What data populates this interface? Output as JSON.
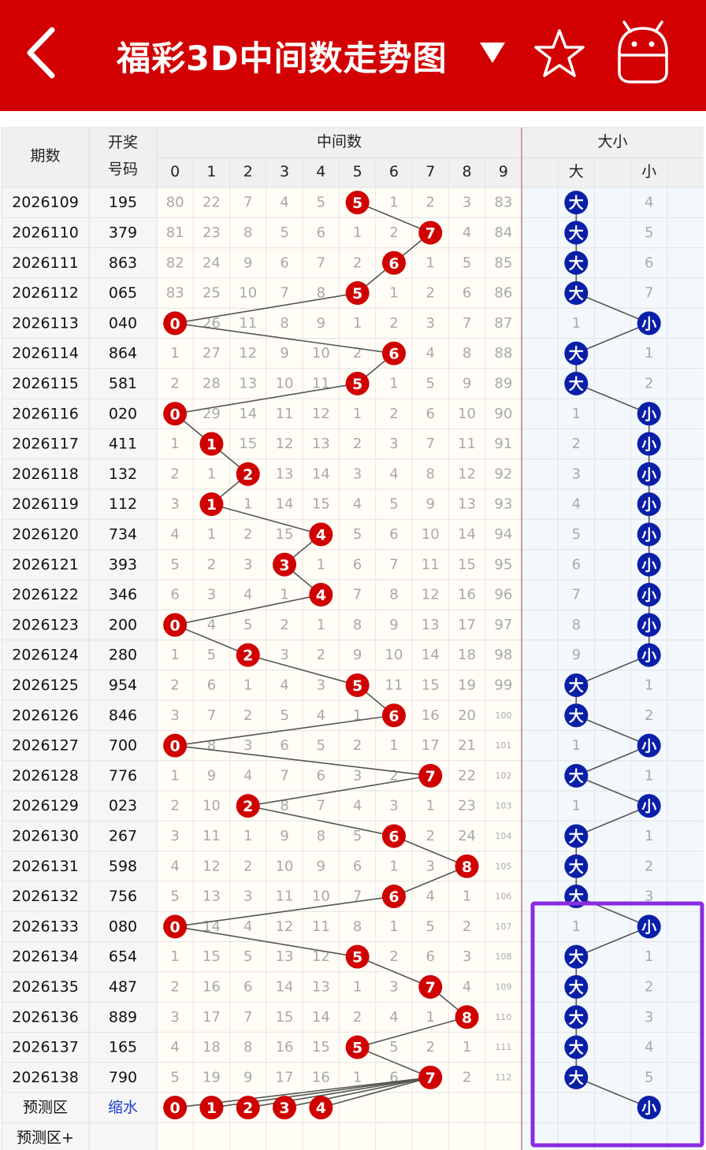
{
  "header": {
    "title": "福彩3D中间数走势图",
    "dropdown_icon": "triangle-down-icon",
    "back_icon": "chevron-left-icon",
    "star_icon": "star-icon",
    "robot_icon": "android-icon",
    "color": "#d20000"
  },
  "table": {
    "col_issue": "期数",
    "col_draw_line1": "开奖",
    "col_draw_line2": "号码",
    "group_mid": "中间数",
    "group_size": "大小",
    "digits": [
      "0",
      "1",
      "2",
      "3",
      "4",
      "5",
      "6",
      "7",
      "8",
      "9"
    ],
    "size_labels": [
      "大",
      "小"
    ],
    "rows": [
      {
        "issue": "2026109",
        "draw": "195",
        "mid": 5,
        "miss": [
          80,
          22,
          7,
          4,
          5,
          null,
          1,
          2,
          3,
          83
        ],
        "size": "大",
        "size_miss": [
          null,
          4
        ]
      },
      {
        "issue": "2026110",
        "draw": "379",
        "mid": 7,
        "miss": [
          81,
          23,
          8,
          5,
          6,
          1,
          2,
          null,
          4,
          84
        ],
        "size": "大",
        "size_miss": [
          null,
          5
        ]
      },
      {
        "issue": "2026111",
        "draw": "863",
        "mid": 6,
        "miss": [
          82,
          24,
          9,
          6,
          7,
          2,
          null,
          1,
          5,
          85
        ],
        "size": "大",
        "size_miss": [
          null,
          6
        ]
      },
      {
        "issue": "2026112",
        "draw": "065",
        "mid": 5,
        "miss": [
          83,
          25,
          10,
          7,
          8,
          null,
          1,
          2,
          6,
          86
        ],
        "size": "大",
        "size_miss": [
          null,
          7
        ]
      },
      {
        "issue": "2026113",
        "draw": "040",
        "mid": 0,
        "miss": [
          null,
          26,
          11,
          8,
          9,
          1,
          2,
          3,
          7,
          87
        ],
        "size": "小",
        "size_miss": [
          1,
          null
        ]
      },
      {
        "issue": "2026114",
        "draw": "864",
        "mid": 6,
        "miss": [
          1,
          27,
          12,
          9,
          10,
          2,
          null,
          4,
          8,
          88
        ],
        "size": "大",
        "size_miss": [
          null,
          1
        ]
      },
      {
        "issue": "2026115",
        "draw": "581",
        "mid": 5,
        "miss": [
          2,
          28,
          13,
          10,
          11,
          null,
          1,
          5,
          9,
          89
        ],
        "size": "大",
        "size_miss": [
          null,
          2
        ]
      },
      {
        "issue": "2026116",
        "draw": "020",
        "mid": 0,
        "miss": [
          null,
          29,
          14,
          11,
          12,
          1,
          2,
          6,
          10,
          90
        ],
        "size": "小",
        "size_miss": [
          1,
          null
        ]
      },
      {
        "issue": "2026117",
        "draw": "411",
        "mid": 1,
        "miss": [
          1,
          null,
          15,
          12,
          13,
          2,
          3,
          7,
          11,
          91
        ],
        "size": "小",
        "size_miss": [
          2,
          null
        ]
      },
      {
        "issue": "2026118",
        "draw": "132",
        "mid": 2,
        "miss": [
          2,
          1,
          null,
          13,
          14,
          3,
          4,
          8,
          12,
          92
        ],
        "size": "小",
        "size_miss": [
          3,
          null
        ]
      },
      {
        "issue": "2026119",
        "draw": "112",
        "mid": 1,
        "miss": [
          3,
          null,
          1,
          14,
          15,
          4,
          5,
          9,
          13,
          93
        ],
        "size": "小",
        "size_miss": [
          4,
          null
        ]
      },
      {
        "issue": "2026120",
        "draw": "734",
        "mid": 4,
        "miss": [
          4,
          1,
          2,
          15,
          null,
          5,
          6,
          10,
          14,
          94
        ],
        "size": "小",
        "size_miss": [
          5,
          null
        ]
      },
      {
        "issue": "2026121",
        "draw": "393",
        "mid": 3,
        "miss": [
          5,
          2,
          3,
          null,
          1,
          6,
          7,
          11,
          15,
          95
        ],
        "size": "小",
        "size_miss": [
          6,
          null
        ]
      },
      {
        "issue": "2026122",
        "draw": "346",
        "mid": 4,
        "miss": [
          6,
          3,
          4,
          1,
          null,
          7,
          8,
          12,
          16,
          96
        ],
        "size": "小",
        "size_miss": [
          7,
          null
        ]
      },
      {
        "issue": "2026123",
        "draw": "200",
        "mid": 0,
        "miss": [
          null,
          4,
          5,
          2,
          1,
          8,
          9,
          13,
          17,
          97
        ],
        "size": "小",
        "size_miss": [
          8,
          null
        ]
      },
      {
        "issue": "2026124",
        "draw": "280",
        "mid": 2,
        "miss": [
          1,
          5,
          null,
          3,
          2,
          9,
          10,
          14,
          18,
          98
        ],
        "size": "小",
        "size_miss": [
          9,
          null
        ]
      },
      {
        "issue": "2026125",
        "draw": "954",
        "mid": 5,
        "miss": [
          2,
          6,
          1,
          4,
          3,
          null,
          11,
          15,
          19,
          99
        ],
        "size": "大",
        "size_miss": [
          null,
          1
        ]
      },
      {
        "issue": "2026126",
        "draw": "846",
        "mid": 6,
        "miss": [
          3,
          7,
          2,
          5,
          4,
          1,
          null,
          16,
          20,
          100
        ],
        "size": "大",
        "size_miss": [
          null,
          2
        ]
      },
      {
        "issue": "2026127",
        "draw": "700",
        "mid": 0,
        "miss": [
          null,
          8,
          3,
          6,
          5,
          2,
          1,
          17,
          21,
          101
        ],
        "size": "小",
        "size_miss": [
          1,
          null
        ]
      },
      {
        "issue": "2026128",
        "draw": "776",
        "mid": 7,
        "miss": [
          1,
          9,
          4,
          7,
          6,
          3,
          2,
          null,
          22,
          102
        ],
        "size": "大",
        "size_miss": [
          null,
          1
        ]
      },
      {
        "issue": "2026129",
        "draw": "023",
        "mid": 2,
        "miss": [
          2,
          10,
          null,
          8,
          7,
          4,
          3,
          1,
          23,
          103
        ],
        "size": "小",
        "size_miss": [
          1,
          null
        ]
      },
      {
        "issue": "2026130",
        "draw": "267",
        "mid": 6,
        "miss": [
          3,
          11,
          1,
          9,
          8,
          5,
          null,
          2,
          24,
          104
        ],
        "size": "大",
        "size_miss": [
          null,
          1
        ]
      },
      {
        "issue": "2026131",
        "draw": "598",
        "mid": 8,
        "miss": [
          4,
          12,
          2,
          10,
          9,
          6,
          1,
          3,
          null,
          105
        ],
        "size": "大",
        "size_miss": [
          null,
          2
        ]
      },
      {
        "issue": "2026132",
        "draw": "756",
        "mid": 6,
        "miss": [
          5,
          13,
          3,
          11,
          10,
          7,
          null,
          4,
          1,
          106
        ],
        "size": "大",
        "size_miss": [
          null,
          3
        ]
      },
      {
        "issue": "2026133",
        "draw": "080",
        "mid": 0,
        "miss": [
          null,
          14,
          4,
          12,
          11,
          8,
          1,
          5,
          2,
          107
        ],
        "size": "小",
        "size_miss": [
          1,
          null
        ]
      },
      {
        "issue": "2026134",
        "draw": "654",
        "mid": 5,
        "miss": [
          1,
          15,
          5,
          13,
          12,
          null,
          2,
          6,
          3,
          108
        ],
        "size": "大",
        "size_miss": [
          null,
          1
        ]
      },
      {
        "issue": "2026135",
        "draw": "487",
        "mid": 7,
        "miss": [
          2,
          16,
          6,
          14,
          13,
          1,
          3,
          null,
          4,
          109
        ],
        "size": "大",
        "size_miss": [
          null,
          2
        ]
      },
      {
        "issue": "2026136",
        "draw": "889",
        "mid": 8,
        "miss": [
          3,
          17,
          7,
          15,
          14,
          2,
          4,
          1,
          null,
          110
        ],
        "size": "大",
        "size_miss": [
          null,
          3
        ]
      },
      {
        "issue": "2026137",
        "draw": "165",
        "mid": 5,
        "miss": [
          4,
          18,
          8,
          16,
          15,
          null,
          5,
          2,
          1,
          111
        ],
        "size": "大",
        "size_miss": [
          null,
          4
        ]
      },
      {
        "issue": "2026138",
        "draw": "790",
        "mid": 7,
        "miss": [
          5,
          19,
          9,
          17,
          16,
          1,
          6,
          null,
          2,
          112
        ],
        "size": "大",
        "size_miss": [
          null,
          5
        ]
      }
    ],
    "predict_label": "预测区",
    "predict_draw": "缩水",
    "predict_nums": [
      0,
      1,
      2,
      3,
      4
    ],
    "predict_size": "小",
    "predict_plus_label": "预测区+"
  },
  "colors": {
    "ball_red": "#d00000",
    "ball_blue": "#0a1fa8",
    "highlight": "#8a2be2",
    "predict_text": "#1a3fd0"
  }
}
